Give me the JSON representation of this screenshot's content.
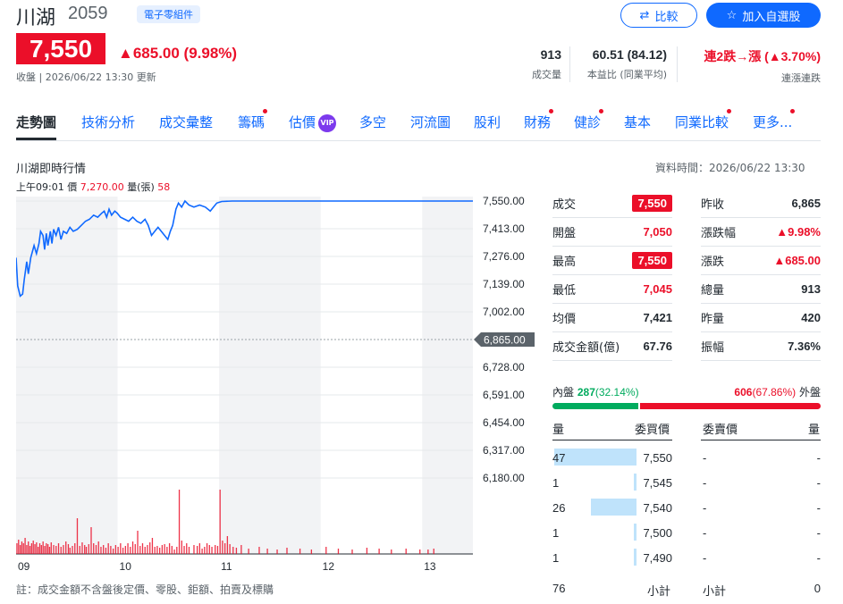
{
  "header": {
    "name": "川湖",
    "code": "2059",
    "tag": "電子零組件",
    "compare_label": "比較",
    "watchlist_label": "加入自選股",
    "price": "7,550",
    "change": "▲685.00 (9.98%)",
    "status": "收盤 | 2026/06/22 13:30 更新"
  },
  "stats": [
    {
      "value": "913",
      "label": "成交量"
    },
    {
      "value": "60.51 (84.12)",
      "label": "本益比 (同業平均)"
    },
    {
      "value": "連2跌→漲 (▲3.70%)",
      "label": "連漲連跌"
    }
  ],
  "tabs": [
    {
      "label": "走勢圖",
      "active": true,
      "dot": false
    },
    {
      "label": "技術分析",
      "dot": false
    },
    {
      "label": "成交彙整",
      "dot": false
    },
    {
      "label": "籌碼",
      "dot": true
    },
    {
      "label": "估價",
      "dot": false,
      "vip": "VIP"
    },
    {
      "label": "多空",
      "dot": false
    },
    {
      "label": "河流圖",
      "dot": false
    },
    {
      "label": "股利",
      "dot": false
    },
    {
      "label": "財務",
      "dot": true
    },
    {
      "label": "健診",
      "dot": true
    },
    {
      "label": "基本",
      "dot": false
    },
    {
      "label": "同業比較",
      "dot": true
    },
    {
      "label": "更多...",
      "dot": true
    }
  ],
  "chart_section": {
    "title": "川湖即時行情",
    "data_time": "資料時間：2026/06/22 13:30",
    "info_time": "上午09:01",
    "info_price_label": "價",
    "info_price": "7,270.00",
    "info_vol_label": "量(張)",
    "info_vol": "58",
    "ref_label": "6,865.00"
  },
  "chart_data": {
    "type": "line",
    "y_ticks": [
      "7,550.00",
      "7,413.00",
      "7,276.00",
      "7,139.00",
      "7,002.00",
      "6,865.00",
      "6,728.00",
      "6,591.00",
      "6,454.00",
      "6,317.00",
      "6,180.00"
    ],
    "x_ticks": [
      "09",
      "10",
      "11",
      "12",
      "13"
    ],
    "ylim": [
      6180,
      7550
    ],
    "reference": 6865,
    "price_series": [
      [
        0,
        7270
      ],
      [
        2,
        7130
      ],
      [
        5,
        7080
      ],
      [
        8,
        7090
      ],
      [
        10,
        7160
      ],
      [
        13,
        7250
      ],
      [
        15,
        7190
      ],
      [
        18,
        7270
      ],
      [
        22,
        7330
      ],
      [
        25,
        7290
      ],
      [
        28,
        7340
      ],
      [
        30,
        7400
      ],
      [
        33,
        7380
      ],
      [
        35,
        7310
      ],
      [
        37,
        7390
      ],
      [
        39,
        7330
      ],
      [
        42,
        7400
      ],
      [
        44,
        7340
      ],
      [
        46,
        7410
      ],
      [
        49,
        7380
      ],
      [
        52,
        7420
      ],
      [
        55,
        7360
      ],
      [
        58,
        7400
      ],
      [
        62,
        7390
      ],
      [
        66,
        7420
      ],
      [
        70,
        7400
      ],
      [
        75,
        7410
      ],
      [
        80,
        7430
      ],
      [
        85,
        7450
      ],
      [
        90,
        7460
      ],
      [
        95,
        7480
      ],
      [
        100,
        7470
      ],
      [
        105,
        7490
      ],
      [
        108,
        7500
      ],
      [
        111,
        7470
      ],
      [
        114,
        7510
      ],
      [
        117,
        7480
      ],
      [
        121,
        7500
      ],
      [
        124,
        7490
      ],
      [
        128,
        7470
      ],
      [
        133,
        7460
      ],
      [
        138,
        7450
      ],
      [
        143,
        7470
      ],
      [
        148,
        7450
      ],
      [
        153,
        7440
      ],
      [
        158,
        7460
      ],
      [
        162,
        7430
      ],
      [
        166,
        7380
      ],
      [
        170,
        7400
      ],
      [
        174,
        7420
      ],
      [
        178,
        7400
      ],
      [
        182,
        7380
      ],
      [
        186,
        7360
      ],
      [
        189,
        7400
      ],
      [
        192,
        7430
      ],
      [
        196,
        7510
      ],
      [
        199,
        7540
      ],
      [
        203,
        7520
      ],
      [
        207,
        7550
      ],
      [
        212,
        7530
      ],
      [
        218,
        7520
      ],
      [
        225,
        7530
      ],
      [
        232,
        7520
      ],
      [
        238,
        7500
      ],
      [
        242,
        7520
      ],
      [
        246,
        7540
      ],
      [
        252,
        7548
      ],
      [
        265,
        7550
      ],
      [
        280,
        7550
      ],
      [
        300,
        7550
      ],
      [
        330,
        7550
      ],
      [
        360,
        7550
      ],
      [
        400,
        7550
      ],
      [
        440,
        7550
      ],
      [
        480,
        7550
      ],
      [
        510,
        7550
      ],
      [
        540,
        7550
      ],
      [
        560,
        7550
      ]
    ],
    "volume_bars": [
      [
        1,
        12
      ],
      [
        3,
        16
      ],
      [
        5,
        10
      ],
      [
        7,
        14
      ],
      [
        9,
        12
      ],
      [
        11,
        18
      ],
      [
        13,
        10
      ],
      [
        15,
        14
      ],
      [
        17,
        9
      ],
      [
        19,
        12
      ],
      [
        21,
        15
      ],
      [
        23,
        11
      ],
      [
        25,
        13
      ],
      [
        27,
        8
      ],
      [
        29,
        12
      ],
      [
        31,
        10
      ],
      [
        33,
        14
      ],
      [
        35,
        9
      ],
      [
        37,
        12
      ],
      [
        39,
        11
      ],
      [
        41,
        8
      ],
      [
        43,
        13
      ],
      [
        46,
        10
      ],
      [
        49,
        9
      ],
      [
        52,
        12
      ],
      [
        55,
        8
      ],
      [
        58,
        10
      ],
      [
        61,
        14
      ],
      [
        64,
        11
      ],
      [
        66,
        7
      ],
      [
        69,
        9
      ],
      [
        72,
        12
      ],
      [
        75,
        40
      ],
      [
        78,
        9
      ],
      [
        81,
        13
      ],
      [
        84,
        10
      ],
      [
        86,
        8
      ],
      [
        89,
        11
      ],
      [
        92,
        30
      ],
      [
        95,
        12
      ],
      [
        98,
        10
      ],
      [
        101,
        14
      ],
      [
        104,
        8
      ],
      [
        107,
        10
      ],
      [
        110,
        7
      ],
      [
        113,
        12
      ],
      [
        116,
        9
      ],
      [
        119,
        6
      ],
      [
        122,
        10
      ],
      [
        125,
        8
      ],
      [
        128,
        12
      ],
      [
        131,
        7
      ],
      [
        134,
        9
      ],
      [
        137,
        12
      ],
      [
        140,
        8
      ],
      [
        143,
        14
      ],
      [
        146,
        11
      ],
      [
        149,
        26
      ],
      [
        152,
        9
      ],
      [
        155,
        12
      ],
      [
        158,
        8
      ],
      [
        161,
        10
      ],
      [
        164,
        13
      ],
      [
        167,
        18
      ],
      [
        170,
        8
      ],
      [
        173,
        9
      ],
      [
        176,
        7
      ],
      [
        179,
        10
      ],
      [
        182,
        11
      ],
      [
        185,
        8
      ],
      [
        188,
        12
      ],
      [
        191,
        9
      ],
      [
        194,
        5
      ],
      [
        197,
        8
      ],
      [
        200,
        72
      ],
      [
        203,
        15
      ],
      [
        206,
        9
      ],
      [
        209,
        12
      ],
      [
        212,
        8
      ],
      [
        218,
        10
      ],
      [
        222,
        9
      ],
      [
        225,
        12
      ],
      [
        228,
        6
      ],
      [
        231,
        8
      ],
      [
        234,
        12
      ],
      [
        237,
        10
      ],
      [
        240,
        8
      ],
      [
        244,
        10
      ],
      [
        247,
        9
      ],
      [
        250,
        72
      ],
      [
        253,
        15
      ],
      [
        256,
        12
      ],
      [
        259,
        20
      ],
      [
        262,
        11
      ],
      [
        266,
        8
      ],
      [
        270,
        7
      ],
      [
        276,
        10
      ],
      [
        285,
        6
      ],
      [
        298,
        8
      ],
      [
        308,
        6
      ],
      [
        320,
        5
      ],
      [
        332,
        7
      ],
      [
        348,
        6
      ],
      [
        362,
        5
      ],
      [
        380,
        8
      ],
      [
        395,
        6
      ],
      [
        412,
        5
      ],
      [
        430,
        7
      ],
      [
        445,
        6
      ],
      [
        460,
        5
      ],
      [
        478,
        6
      ],
      [
        495,
        5
      ],
      [
        505,
        5
      ],
      [
        512,
        6
      ]
    ]
  },
  "quote_table": [
    {
      "label": "成交",
      "value": "7,550",
      "style": "pill"
    },
    {
      "label": "昨收",
      "value": "6,865",
      "style": "normal"
    },
    {
      "label": "開盤",
      "value": "7,050",
      "style": "red"
    },
    {
      "label": "漲跌幅",
      "value": "▲9.98%",
      "style": "red"
    },
    {
      "label": "最高",
      "value": "7,550",
      "style": "pill"
    },
    {
      "label": "漲跌",
      "value": "▲685.00",
      "style": "red"
    },
    {
      "label": "最低",
      "value": "7,045",
      "style": "red"
    },
    {
      "label": "總量",
      "value": "913",
      "style": "normal"
    },
    {
      "label": "均價",
      "value": "7,421",
      "style": "normal"
    },
    {
      "label": "昨量",
      "value": "420",
      "style": "normal"
    },
    {
      "label": "成交金額(億)",
      "value": "67.76",
      "style": "normal"
    },
    {
      "label": "振幅",
      "value": "7.36%",
      "style": "normal"
    }
  ],
  "inout": {
    "in_label": "內盤",
    "in_value": "287",
    "in_pct": "(32.14%)",
    "out_value": "606",
    "out_pct": "(67.86%)",
    "out_label": "外盤",
    "in_fraction": 0.3214
  },
  "order_book": {
    "headers": {
      "qty": "量",
      "bid": "委買價",
      "ask": "委賣價",
      "ask_qty": "量"
    },
    "rows": [
      {
        "qty": "47",
        "bid": "7,550",
        "ask": "-",
        "ask_qty": "-",
        "level": 1.0
      },
      {
        "qty": "1",
        "bid": "7,545",
        "ask": "-",
        "ask_qty": "-",
        "level": 0.02
      },
      {
        "qty": "26",
        "bid": "7,540",
        "ask": "-",
        "ask_qty": "-",
        "level": 0.55
      },
      {
        "qty": "1",
        "bid": "7,500",
        "ask": "-",
        "ask_qty": "-",
        "level": 0.02
      },
      {
        "qty": "1",
        "bid": "7,490",
        "ask": "-",
        "ask_qty": "-",
        "level": 0.02
      }
    ],
    "bid_total": "76",
    "subtotal_label": "小計",
    "ask_subtotal_label": "小計",
    "ask_total": "0"
  },
  "footnote": "註：成交金額不含盤後定價、零股、鉅額、拍賣及標購"
}
